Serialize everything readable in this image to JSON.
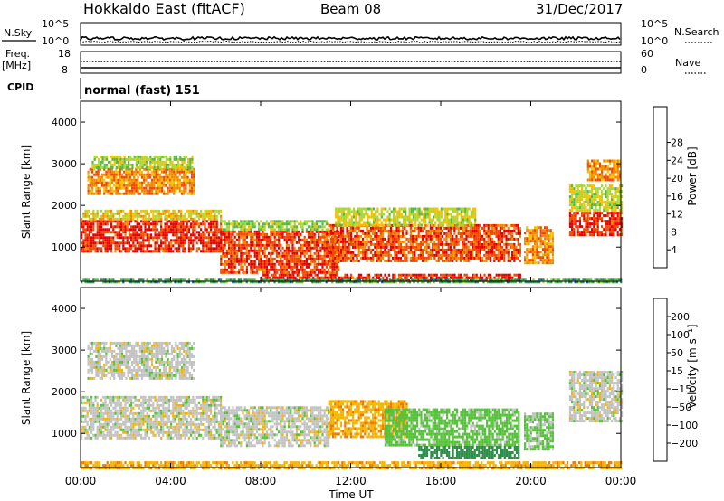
{
  "header": {
    "station": "Hokkaido East (fitACF)",
    "beam": "Beam 08",
    "date": "31/Dec/2017"
  },
  "strips": {
    "nsky_label": "N.Sky",
    "nsearch_label": "N.Search",
    "nsky_ticks": [
      "10^5",
      "10^0"
    ],
    "nsearch_ticks": [
      "10^5",
      "10^0"
    ],
    "freq_label_line1": "Freq.",
    "freq_label_line2": "[MHz]",
    "freq_ticks": [
      "18",
      "8"
    ],
    "nave_label": "Nave",
    "nave_ticks": [
      "60",
      "0"
    ],
    "cpid_label": "CPID",
    "cpid_text": "normal (fast) 151"
  },
  "colors": {
    "power": [
      "#0a14e6",
      "#1e50a0",
      "#2f8a55",
      "#55b84a",
      "#a8d838",
      "#f5c000",
      "#f08a00",
      "#f04a00",
      "#e60000"
    ],
    "velocity": [
      "#1a1ae6",
      "#2e5aa8",
      "#2f8f4a",
      "#55c23a",
      "#c2c2c2",
      "#f5b400",
      "#f07800",
      "#e83a00",
      "#e00000"
    ]
  },
  "chart_data": [
    {
      "type": "heatmap",
      "panel": "power",
      "ylabel": "Slant Range [km]",
      "xlim": [
        "00:00",
        "00:00"
      ],
      "ylim": [
        180,
        4500
      ],
      "yticks": [
        1000,
        2000,
        3000,
        4000
      ],
      "colorbar_label": "Power [dB]",
      "colorbar_ticks": [
        "4",
        "8",
        "12",
        "16",
        "20",
        "24",
        "28"
      ],
      "colorbar_range": [
        0,
        30
      ],
      "value_units": "dB",
      "regions": [
        {
          "t0": 0.0,
          "t1": 6.2,
          "r0": 900,
          "r1": 1650,
          "value": 27
        },
        {
          "t0": 0.0,
          "t1": 6.2,
          "r0": 1650,
          "r1": 1900,
          "value": 18
        },
        {
          "t0": 0.3,
          "t1": 5.0,
          "r0": 2300,
          "r1": 2900,
          "value": 22
        },
        {
          "t0": 0.5,
          "t1": 5.0,
          "r0": 2900,
          "r1": 3200,
          "value": 15
        },
        {
          "t0": 6.2,
          "t1": 11.5,
          "r0": 400,
          "r1": 1400,
          "value": 26
        },
        {
          "t0": 6.2,
          "t1": 11.0,
          "r0": 1400,
          "r1": 1650,
          "value": 14
        },
        {
          "t0": 11.0,
          "t1": 19.5,
          "r0": 700,
          "r1": 1550,
          "value": 25
        },
        {
          "t0": 11.3,
          "t1": 17.5,
          "r0": 1550,
          "r1": 1950,
          "value": 16
        },
        {
          "t0": 8.0,
          "t1": 19.5,
          "r0": 220,
          "r1": 360,
          "value": 27
        },
        {
          "t0": 19.7,
          "t1": 21.0,
          "r0": 600,
          "r1": 1500,
          "value": 22
        },
        {
          "t0": 21.7,
          "t1": 24.0,
          "r0": 1300,
          "r1": 1850,
          "value": 27
        },
        {
          "t0": 21.7,
          "t1": 24.0,
          "r0": 1850,
          "r1": 2500,
          "value": 16
        },
        {
          "t0": 22.5,
          "t1": 24.0,
          "r0": 2600,
          "r1": 3100,
          "value": 22
        },
        {
          "t0": 0.0,
          "t1": 24.0,
          "r0": 180,
          "r1": 260,
          "value": 10
        }
      ]
    },
    {
      "type": "heatmap",
      "panel": "velocity",
      "xlabel": "Time UT",
      "ylabel": "Slant Range [km]",
      "xlim": [
        "00:00",
        "00:00"
      ],
      "xticks": [
        "00:00",
        "04:00",
        "08:00",
        "12:00",
        "16:00",
        "20:00",
        "00:00"
      ],
      "ylim": [
        180,
        4500
      ],
      "yticks": [
        1000,
        2000,
        3000,
        4000
      ],
      "colorbar_label": "Velocity [m s⁻¹]",
      "colorbar_ticks": [
        "200",
        "100",
        "50",
        "15",
        "−15",
        "−50",
        "−100",
        "−200"
      ],
      "value_units": "m/s",
      "regions": [
        {
          "t0": 0.0,
          "t1": 6.2,
          "r0": 900,
          "r1": 1900,
          "value": 0
        },
        {
          "t0": 0.3,
          "t1": 5.0,
          "r0": 2300,
          "r1": 3200,
          "value": 0
        },
        {
          "t0": 6.2,
          "t1": 11.0,
          "r0": 700,
          "r1": 1650,
          "value": 0
        },
        {
          "t0": 11.0,
          "t1": 14.5,
          "r0": 900,
          "r1": 1800,
          "value": -40
        },
        {
          "t0": 13.5,
          "t1": 19.5,
          "r0": 700,
          "r1": 1600,
          "value": 30
        },
        {
          "t0": 15.0,
          "t1": 19.5,
          "r0": 400,
          "r1": 700,
          "value": 80
        },
        {
          "t0": 19.7,
          "t1": 21.0,
          "r0": 600,
          "r1": 1500,
          "value": 20
        },
        {
          "t0": 21.7,
          "t1": 24.0,
          "r0": 1300,
          "r1": 2500,
          "value": 0
        },
        {
          "t0": 0.0,
          "t1": 24.0,
          "r0": 180,
          "r1": 330,
          "value": -40
        }
      ]
    }
  ]
}
